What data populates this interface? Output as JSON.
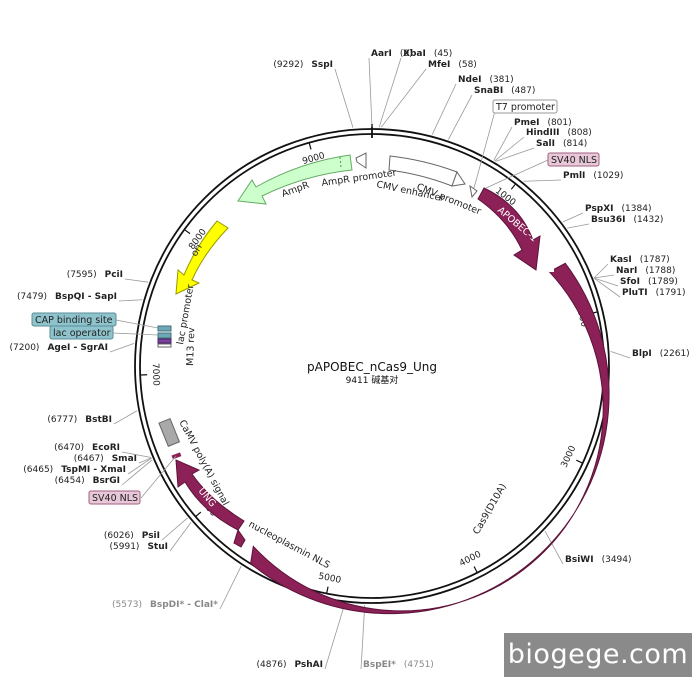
{
  "plasmid": {
    "name": "pAPOBEC_nCas9_Ung",
    "size_text": "9411 碱基对",
    "length": 9411
  },
  "ticks": [
    {
      "bp": 1000,
      "label": "1000"
    },
    {
      "bp": 2000,
      "label": "2000"
    },
    {
      "bp": 3000,
      "label": "3000"
    },
    {
      "bp": 4000,
      "label": "4000"
    },
    {
      "bp": 5000,
      "label": "5000"
    },
    {
      "bp": 6000,
      "label": "6000"
    },
    {
      "bp": 7000,
      "label": "7000"
    },
    {
      "bp": 8000,
      "label": "8000"
    },
    {
      "bp": 9000,
      "label": "9000"
    }
  ],
  "sites": [
    {
      "name": "AarI",
      "pos": "(0)",
      "bp": 0
    },
    {
      "name": "SspI",
      "pos": "(9292)",
      "bp": 9292
    },
    {
      "name": "XbaI",
      "pos": "(45)",
      "bp": 45
    },
    {
      "name": "MfeI",
      "pos": "(58)",
      "bp": 58
    },
    {
      "name": "NdeI",
      "pos": "(381)",
      "bp": 381
    },
    {
      "name": "SnaBI",
      "pos": "(487)",
      "bp": 487
    },
    {
      "name": "PmeI",
      "pos": "(801)",
      "bp": 801
    },
    {
      "name": "HindIII",
      "pos": "(808)",
      "bp": 808
    },
    {
      "name": "SalI",
      "pos": "(814)",
      "bp": 814
    },
    {
      "name": "PmlI",
      "pos": "(1029)",
      "bp": 1029
    },
    {
      "name": "PspXI",
      "pos": "(1384)",
      "bp": 1384
    },
    {
      "name": "Bsu36I",
      "pos": "(1432)",
      "bp": 1432
    },
    {
      "name": "KasI",
      "pos": "(1787)",
      "bp": 1787
    },
    {
      "name": "NarI",
      "pos": "(1788)",
      "bp": 1788
    },
    {
      "name": "SfoI",
      "pos": "(1789)",
      "bp": 1789
    },
    {
      "name": "PluTI",
      "pos": "(1791)",
      "bp": 1791
    },
    {
      "name": "BlpI",
      "pos": "(2261)",
      "bp": 2261
    },
    {
      "name": "BsiWI",
      "pos": "(3494)",
      "bp": 3494
    },
    {
      "name": "BspEI*",
      "pos": "(4751)",
      "bp": 4751,
      "gray": true
    },
    {
      "name": "PshAI",
      "pos": "(4876)",
      "bp": 4876
    },
    {
      "name": "BspDI* - ClaI*",
      "pos": "(5573)",
      "bp": 5573,
      "gray": true
    },
    {
      "name": "StuI",
      "pos": "(5991)",
      "bp": 5991
    },
    {
      "name": "PsiI",
      "pos": "(6026)",
      "bp": 6026
    },
    {
      "name": "BsrGI",
      "pos": "(6454)",
      "bp": 6454
    },
    {
      "name": "TspMI - XmaI",
      "pos": "(6465)",
      "bp": 6465
    },
    {
      "name": "SmaI",
      "pos": "(6467)",
      "bp": 6467
    },
    {
      "name": "EcoRI",
      "pos": "(6470)",
      "bp": 6470
    },
    {
      "name": "BstBI",
      "pos": "(6777)",
      "bp": 6777
    },
    {
      "name": "AgeI - SgrAI",
      "pos": "(7200)",
      "bp": 7200
    },
    {
      "name": "BspQI - SapI",
      "pos": "(7479)",
      "bp": 7479
    },
    {
      "name": "PciI",
      "pos": "(7595)",
      "bp": 7595
    }
  ],
  "features": [
    {
      "label": "APOBEC-1",
      "color": "#8b2157"
    },
    {
      "label": "Cas9(D10A)",
      "color": "#8b2157"
    },
    {
      "label": "nucleoplasmin NLS",
      "color": "#8b2157"
    },
    {
      "label": "UNG",
      "color": "#8b2157"
    },
    {
      "label": "CaMV poly(A) signal",
      "color": "#a9a9a9"
    },
    {
      "label": "lac operator",
      "color": "#6fa8b5"
    },
    {
      "label": "CAP binding site",
      "color": "#6fa8b5"
    },
    {
      "label": "lac promoter",
      "color": "#ffffff"
    },
    {
      "label": "M13 rev",
      "color": "#7b3fa0"
    },
    {
      "label": "ori",
      "color": "#ffff00"
    },
    {
      "label": "AmpR",
      "color": "#ccffcc"
    },
    {
      "label": "AmpR promoter",
      "color": "#ffffff"
    },
    {
      "label": "CMV enhancer",
      "color": "#ffffff"
    },
    {
      "label": "CMV promoter",
      "color": "#ffffff"
    },
    {
      "label": "T7 promoter",
      "color": "#ffffff"
    },
    {
      "label": "SV40 NLS",
      "color": "#e8c8d8"
    }
  ],
  "boxed_labels": {
    "t7": "T7 promoter",
    "sv40_top": "SV40 NLS",
    "sv40_bottom": "SV40 NLS",
    "cap": "CAP binding site",
    "lacop": "lac operator"
  },
  "watermark": "biogege.com"
}
